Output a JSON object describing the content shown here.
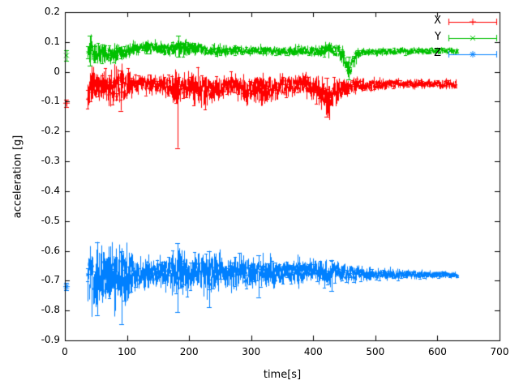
{
  "chart_data": {
    "type": "line",
    "style": "errorbars",
    "title": "",
    "xlabel": "time[s]",
    "ylabel": "acceleration [g]",
    "xlim": [
      0,
      700
    ],
    "ylim": [
      -0.9,
      0.2
    ],
    "xticks": [
      0,
      100,
      200,
      300,
      400,
      500,
      600,
      700
    ],
    "xtick_labels": [
      "0",
      "100",
      "200",
      "300",
      "400",
      "500",
      "600",
      "700"
    ],
    "ytick_values": [
      0.2,
      0.1,
      0,
      -0.1,
      -0.2,
      -0.3,
      -0.4,
      -0.5,
      -0.6,
      -0.7,
      -0.8,
      -0.9
    ],
    "ytick_labels": [
      "0.2",
      "0.1",
      "0",
      "-0.1",
      "-0.2",
      "-0.3",
      "-0.4",
      "-0.5",
      "-0.6",
      "-0.7",
      "-0.8",
      "-0.9"
    ],
    "background": "#ffffff",
    "border_color": "#000000",
    "grid": false,
    "legend": {
      "position": "top-right",
      "entries": [
        "X",
        "Y",
        "Z"
      ]
    },
    "series": [
      {
        "name": "X",
        "color": "#ff0000",
        "marker": "plus",
        "start_point": {
          "t": 2,
          "y": -0.105,
          "err": 0.012
        },
        "band": [
          [
            36,
            -0.055,
            0.075
          ],
          [
            45,
            -0.05,
            0.055
          ],
          [
            60,
            -0.05,
            0.045
          ],
          [
            80,
            -0.055,
            0.055
          ],
          [
            95,
            -0.05,
            0.06
          ],
          [
            110,
            -0.045,
            0.035
          ],
          [
            130,
            -0.04,
            0.03
          ],
          [
            155,
            -0.045,
            0.035
          ],
          [
            180,
            -0.06,
            0.055
          ],
          [
            200,
            -0.05,
            0.045
          ],
          [
            225,
            -0.06,
            0.055
          ],
          [
            245,
            -0.05,
            0.04
          ],
          [
            270,
            -0.045,
            0.035
          ],
          [
            295,
            -0.065,
            0.05
          ],
          [
            310,
            -0.05,
            0.045
          ],
          [
            330,
            -0.06,
            0.05
          ],
          [
            350,
            -0.05,
            0.04
          ],
          [
            370,
            -0.045,
            0.035
          ],
          [
            390,
            -0.04,
            0.035
          ],
          [
            410,
            -0.07,
            0.055
          ],
          [
            425,
            -0.09,
            0.05
          ],
          [
            440,
            -0.06,
            0.045
          ],
          [
            455,
            -0.05,
            0.035
          ],
          [
            470,
            -0.045,
            0.025
          ],
          [
            500,
            -0.042,
            0.02
          ],
          [
            540,
            -0.04,
            0.016
          ],
          [
            580,
            -0.04,
            0.014
          ],
          [
            630,
            -0.042,
            0.016
          ]
        ],
        "spikes": [
          [
            181,
            -0.255,
            -0.02
          ],
          [
            422,
            -0.15,
            -0.02
          ],
          [
            90,
            -0.13,
            0.005
          ]
        ]
      },
      {
        "name": "Y",
        "color": "#00c000",
        "marker": "cross",
        "start_point": {
          "t": 2,
          "y": 0.055,
          "err": 0.018
        },
        "band": [
          [
            36,
            0.07,
            0.05
          ],
          [
            45,
            0.065,
            0.045
          ],
          [
            60,
            0.06,
            0.04
          ],
          [
            75,
            0.055,
            0.035
          ],
          [
            90,
            0.065,
            0.03
          ],
          [
            105,
            0.075,
            0.02
          ],
          [
            125,
            0.085,
            0.022
          ],
          [
            145,
            0.08,
            0.025
          ],
          [
            165,
            0.075,
            0.022
          ],
          [
            185,
            0.08,
            0.03
          ],
          [
            205,
            0.08,
            0.022
          ],
          [
            230,
            0.072,
            0.02
          ],
          [
            260,
            0.07,
            0.018
          ],
          [
            290,
            0.073,
            0.016
          ],
          [
            320,
            0.07,
            0.016
          ],
          [
            350,
            0.07,
            0.015
          ],
          [
            380,
            0.072,
            0.018
          ],
          [
            400,
            0.07,
            0.02
          ],
          [
            420,
            0.072,
            0.022
          ],
          [
            440,
            0.07,
            0.025
          ],
          [
            450,
            0.04,
            0.035
          ],
          [
            457,
            -0.005,
            0.03
          ],
          [
            463,
            0.03,
            0.035
          ],
          [
            470,
            0.06,
            0.02
          ],
          [
            480,
            0.065,
            0.014
          ],
          [
            520,
            0.068,
            0.012
          ],
          [
            570,
            0.07,
            0.011
          ],
          [
            632,
            0.07,
            0.012
          ]
        ],
        "spikes": [
          [
            183,
            0.05,
            0.12
          ],
          [
            457,
            -0.025,
            0.05
          ],
          [
            40,
            0.02,
            0.12
          ]
        ]
      },
      {
        "name": "Z",
        "color": "#0080ff",
        "marker": "star",
        "start_point": {
          "t": 2,
          "y": -0.72,
          "err": 0.012
        },
        "band": [
          [
            36,
            -0.69,
            0.085
          ],
          [
            45,
            -0.695,
            0.1
          ],
          [
            55,
            -0.69,
            0.095
          ],
          [
            70,
            -0.685,
            0.09
          ],
          [
            85,
            -0.68,
            0.1
          ],
          [
            95,
            -0.68,
            0.11
          ],
          [
            110,
            -0.675,
            0.06
          ],
          [
            130,
            -0.675,
            0.05
          ],
          [
            150,
            -0.67,
            0.045
          ],
          [
            170,
            -0.675,
            0.06
          ],
          [
            185,
            -0.68,
            0.085
          ],
          [
            200,
            -0.675,
            0.055
          ],
          [
            215,
            -0.68,
            0.07
          ],
          [
            235,
            -0.68,
            0.075
          ],
          [
            255,
            -0.675,
            0.055
          ],
          [
            275,
            -0.67,
            0.05
          ],
          [
            300,
            -0.675,
            0.055
          ],
          [
            320,
            -0.67,
            0.045
          ],
          [
            340,
            -0.675,
            0.05
          ],
          [
            360,
            -0.67,
            0.04
          ],
          [
            380,
            -0.665,
            0.045
          ],
          [
            400,
            -0.67,
            0.04
          ],
          [
            420,
            -0.675,
            0.045
          ],
          [
            440,
            -0.67,
            0.035
          ],
          [
            460,
            -0.675,
            0.03
          ],
          [
            480,
            -0.678,
            0.025
          ],
          [
            510,
            -0.68,
            0.02
          ],
          [
            550,
            -0.68,
            0.016
          ],
          [
            590,
            -0.68,
            0.013
          ],
          [
            632,
            -0.68,
            0.012
          ]
        ],
        "spikes": [
          [
            52,
            -0.815,
            -0.57
          ],
          [
            92,
            -0.845,
            -0.6
          ],
          [
            181,
            -0.805,
            -0.575
          ],
          [
            232,
            -0.79,
            -0.6
          ],
          [
            312,
            -0.755,
            -0.615
          ],
          [
            430,
            -0.735,
            -0.63
          ]
        ]
      }
    ]
  }
}
